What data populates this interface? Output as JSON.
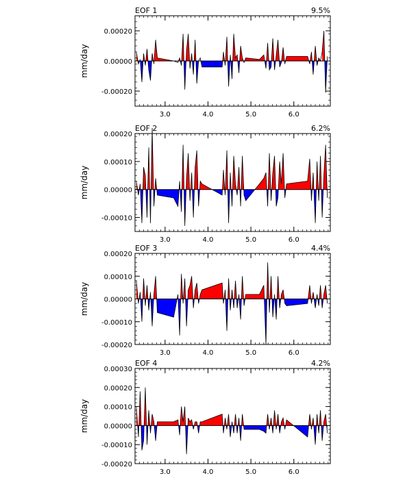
{
  "chart_data": [
    {
      "type": "area",
      "title_left": "EOF 1",
      "title_right": "9.5%",
      "ylabel": "mm/day",
      "xlim": [
        2.3,
        6.85
      ],
      "ylim": [
        -0.0003,
        0.0003
      ],
      "yticks": [
        -0.0002,
        0.0,
        0.0002
      ],
      "ytick_labels": [
        "-0.00020",
        "0.00000",
        "0.00020"
      ],
      "xticks": [
        3.0,
        4.0,
        5.0,
        6.0
      ],
      "xtick_labels": [
        "3.0",
        "4.0",
        "5.0",
        "6.0"
      ],
      "colors": {
        "positive": "#ff0000",
        "negative": "#0000ff"
      },
      "series": [
        {
          "name": "EOF 1",
          "x": [
            2.33,
            2.38,
            2.42,
            2.46,
            2.5,
            2.54,
            2.58,
            2.62,
            2.66,
            2.7,
            2.74,
            2.78,
            2.82,
            3.2,
            3.3,
            3.34,
            3.38,
            3.42,
            3.46,
            3.5,
            3.54,
            3.58,
            3.62,
            3.66,
            3.7,
            3.74,
            3.78,
            3.82,
            3.86,
            4.33,
            4.36,
            4.4,
            4.44,
            4.48,
            4.52,
            4.56,
            4.6,
            4.64,
            4.68,
            4.72,
            4.76,
            4.8,
            4.84,
            4.88,
            5.2,
            5.3,
            5.35,
            5.39,
            5.43,
            5.47,
            5.51,
            5.55,
            5.59,
            5.63,
            5.67,
            5.71,
            5.75,
            5.79,
            5.83,
            6.32,
            6.37,
            6.41,
            6.45,
            6.5,
            6.54,
            6.58,
            6.62,
            6.66,
            6.7,
            6.74,
            6.78
          ],
          "y": [
            6e-05,
            -2e-05,
            1e-05,
            -0.00014,
            5e-05,
            -3e-05,
            8e-05,
            -6e-05,
            -0.00013,
            5e-05,
            -2e-05,
            0.00014,
            2e-05,
            0.0,
            -1e-05,
            2e-05,
            -3e-05,
            0.00018,
            -0.00019,
            7e-05,
            0.00018,
            -5e-05,
            5e-05,
            -9e-05,
            0.00014,
            -0.00015,
            0.0,
            2e-05,
            -4e-05,
            -4e-05,
            6e-05,
            -3e-05,
            0.00016,
            -0.00017,
            4e-05,
            -0.00012,
            0.00018,
            2e-05,
            4e-05,
            -8e-05,
            0.0001,
            2e-05,
            -1e-05,
            2e-05,
            1e-05,
            4e-05,
            -5e-05,
            0.00012,
            -6e-05,
            -4e-05,
            0.00015,
            -6e-05,
            4e-05,
            0.00014,
            -4e-05,
            -1e-05,
            9e-05,
            -2e-05,
            3e-05,
            3e-05,
            -2e-05,
            6e-05,
            -9e-05,
            0.0001,
            -3e-05,
            2e-05,
            0.0,
            6e-05,
            0.0002,
            -0.00021,
            3e-05
          ]
        }
      ]
    },
    {
      "type": "area",
      "title_left": "EOF 2",
      "title_right": "6.2%",
      "ylabel": "mm/day",
      "xlim": [
        2.3,
        6.85
      ],
      "ylim": [
        -0.00015,
        0.0002
      ],
      "yticks": [
        -0.0001,
        0.0,
        0.0001,
        0.0002
      ],
      "ytick_labels": [
        "-0.00010",
        "0.00000",
        "0.00010",
        "0.00020"
      ],
      "xticks": [
        3.0,
        4.0,
        5.0,
        6.0
      ],
      "xtick_labels": [
        "3.0",
        "4.0",
        "5.0",
        "6.0"
      ],
      "colors": {
        "positive": "#ff0000",
        "negative": "#0000ff"
      },
      "series": [
        {
          "name": "EOF 2",
          "x": [
            2.33,
            2.38,
            2.42,
            2.46,
            2.5,
            2.54,
            2.58,
            2.62,
            2.66,
            2.7,
            2.74,
            2.78,
            2.82,
            3.2,
            3.3,
            3.34,
            3.38,
            3.42,
            3.46,
            3.5,
            3.54,
            3.58,
            3.62,
            3.66,
            3.7,
            3.74,
            3.78,
            3.82,
            3.86,
            4.33,
            4.36,
            4.4,
            4.44,
            4.48,
            4.52,
            4.56,
            4.6,
            4.64,
            4.68,
            4.72,
            4.76,
            4.8,
            4.84,
            4.88,
            5.2,
            5.3,
            5.35,
            5.39,
            5.43,
            5.47,
            5.51,
            5.55,
            5.59,
            5.63,
            5.67,
            5.71,
            5.75,
            5.79,
            5.83,
            6.32,
            6.37,
            6.41,
            6.45,
            6.5,
            6.54,
            6.58,
            6.62,
            6.66,
            6.7,
            6.74,
            6.78
          ],
          "y": [
            3e-05,
            -2e-05,
            2e-05,
            -0.00012,
            8e-05,
            5e-05,
            -0.0001,
            0.00015,
            -0.00012,
            0.00022,
            -6e-05,
            4e-05,
            -2e-05,
            -3e-05,
            -6e-05,
            3e-05,
            -8e-05,
            0.00016,
            -0.00013,
            4e-05,
            0.00013,
            -4e-05,
            6e-05,
            -0.0001,
            8e-05,
            0.00014,
            -6e-05,
            3e-05,
            2e-05,
            -2e-05,
            7e-05,
            -2e-05,
            0.00014,
            -0.00012,
            6e-05,
            -6e-05,
            0.00012,
            2e-05,
            -2e-05,
            8e-05,
            -6e-05,
            0.00012,
            -2e-05,
            -4e-05,
            2e-05,
            4e-05,
            6e-05,
            -6e-05,
            0.00013,
            -4e-05,
            6e-05,
            0.00012,
            -6e-05,
            -3e-05,
            0.0001,
            2e-05,
            0.00013,
            -3e-05,
            2e-05,
            3e-05,
            0.00011,
            -4e-05,
            6e-05,
            -0.00012,
            0.0001,
            -4e-05,
            0.00012,
            -0.0001,
            5e-05,
            0.00016,
            -3e-05
          ]
        }
      ]
    },
    {
      "type": "area",
      "title_left": "EOF 3",
      "title_right": "4.4%",
      "ylabel": "mm/day",
      "xlim": [
        2.3,
        6.85
      ],
      "ylim": [
        -0.0002,
        0.0002
      ],
      "yticks": [
        -0.0002,
        -0.0001,
        0.0,
        0.0001,
        0.0002
      ],
      "ytick_labels": [
        "-0.00020",
        "-0.00010",
        "0.00000",
        "0.00010",
        "0.00020"
      ],
      "xticks": [
        3.0,
        4.0,
        5.0,
        6.0
      ],
      "xtick_labels": [
        "3.0",
        "4.0",
        "5.0",
        "6.0"
      ],
      "colors": {
        "positive": "#ff0000",
        "negative": "#0000ff"
      },
      "series": [
        {
          "name": "EOF 3",
          "x": [
            2.33,
            2.38,
            2.42,
            2.46,
            2.5,
            2.54,
            2.58,
            2.62,
            2.66,
            2.7,
            2.74,
            2.78,
            2.82,
            3.2,
            3.3,
            3.34,
            3.38,
            3.42,
            3.46,
            3.5,
            3.54,
            3.58,
            3.62,
            3.66,
            3.7,
            3.74,
            3.78,
            3.82,
            3.86,
            4.33,
            4.36,
            4.4,
            4.44,
            4.48,
            4.52,
            4.56,
            4.6,
            4.64,
            4.68,
            4.72,
            4.76,
            4.8,
            4.84,
            4.88,
            5.2,
            5.3,
            5.35,
            5.39,
            5.43,
            5.47,
            5.51,
            5.55,
            5.59,
            5.63,
            5.67,
            5.71,
            5.75,
            5.79,
            5.83,
            6.32,
            6.37,
            6.41,
            6.45,
            6.5,
            6.54,
            6.58,
            6.62,
            6.66,
            6.7,
            6.74,
            6.78
          ],
          "y": [
            8e-05,
            -2e-05,
            3e-05,
            -0.0001,
            9e-05,
            -3e-05,
            6e-05,
            -5e-05,
            3e-05,
            -0.00012,
            2e-05,
            0.0001,
            -6e-05,
            -8e-05,
            2e-05,
            -0.00016,
            0.00011,
            -2e-05,
            9e-05,
            -0.00012,
            4e-05,
            6e-05,
            0.0001,
            -4e-05,
            4e-05,
            7e-05,
            -2e-05,
            2e-05,
            4e-05,
            7e-05,
            -2e-05,
            4e-05,
            -0.00014,
            9e-05,
            -5e-05,
            4e-05,
            -4e-05,
            8e-05,
            -4e-05,
            2e-05,
            -9e-05,
            0.0001,
            -3e-05,
            2e-05,
            2e-05,
            6e-05,
            -0.0002,
            0.00016,
            -6e-05,
            0.0001,
            -8e-05,
            2e-05,
            -9e-05,
            0.0001,
            -4e-05,
            2e-05,
            4e-05,
            -2e-05,
            -3e-05,
            -2e-05,
            6e-05,
            -2e-05,
            3e-05,
            -4e-05,
            2e-05,
            -3e-05,
            6e-05,
            -4e-05,
            2e-05,
            6e-05,
            -2e-05
          ]
        }
      ]
    },
    {
      "type": "area",
      "title_left": "EOF 4",
      "title_right": "4.2%",
      "ylabel": "mm/day",
      "xlim": [
        2.3,
        6.85
      ],
      "ylim": [
        -0.0002,
        0.0003
      ],
      "yticks": [
        -0.0002,
        -0.0001,
        0.0,
        0.0001,
        0.0002,
        0.0003
      ],
      "ytick_labels": [
        "-0.00020",
        "-0.00010",
        "0.00000",
        "0.00010",
        "0.00020",
        "0.00030"
      ],
      "xticks": [
        3.0,
        4.0,
        5.0,
        6.0
      ],
      "xtick_labels": [
        "3.0",
        "4.0",
        "5.0",
        "6.0"
      ],
      "colors": {
        "positive": "#ff0000",
        "negative": "#0000ff"
      },
      "series": [
        {
          "name": "EOF 4",
          "x": [
            2.33,
            2.38,
            2.42,
            2.46,
            2.5,
            2.54,
            2.58,
            2.62,
            2.66,
            2.7,
            2.74,
            2.78,
            2.82,
            3.2,
            3.3,
            3.34,
            3.38,
            3.42,
            3.46,
            3.5,
            3.54,
            3.58,
            3.62,
            3.66,
            3.7,
            3.74,
            3.78,
            3.82,
            3.86,
            4.33,
            4.36,
            4.4,
            4.44,
            4.48,
            4.52,
            4.56,
            4.6,
            4.64,
            4.68,
            4.72,
            4.76,
            4.8,
            4.84,
            4.88,
            5.2,
            5.3,
            5.35,
            5.39,
            5.43,
            5.47,
            5.51,
            5.55,
            5.59,
            5.63,
            5.67,
            5.71,
            5.75,
            5.79,
            5.83,
            6.32,
            6.37,
            6.41,
            6.45,
            6.5,
            6.54,
            6.58,
            6.62,
            6.66,
            6.7,
            6.74,
            6.78
          ],
          "y": [
            0.0001,
            -6e-05,
            0.00018,
            -0.00013,
            -8e-05,
            0.0002,
            -0.0001,
            8e-05,
            -4e-05,
            6e-05,
            2e-05,
            -8e-05,
            2e-05,
            2e-05,
            3e-05,
            -5e-05,
            0.0001,
            2e-05,
            0.0001,
            -0.00015,
            4e-05,
            2e-05,
            3e-05,
            -2e-05,
            2e-05,
            2e-05,
            -4e-05,
            2e-05,
            2e-05,
            6e-05,
            -4e-05,
            4e-05,
            -2e-05,
            6e-05,
            -6e-05,
            2e-05,
            -4e-05,
            6e-05,
            -4e-05,
            4e-05,
            -8e-05,
            6e-05,
            -2e-05,
            -2e-05,
            -2e-05,
            -3e-05,
            -4e-05,
            6e-05,
            -2e-05,
            4e-05,
            -4e-05,
            8e-05,
            -2e-05,
            6e-05,
            -4e-05,
            2e-05,
            4e-05,
            -2e-05,
            3e-05,
            -6e-05,
            6e-05,
            -2e-05,
            4e-05,
            -0.0001,
            6e-05,
            -4e-05,
            8e-05,
            -8e-05,
            2e-05,
            6e-05,
            -4e-05
          ]
        }
      ]
    }
  ]
}
